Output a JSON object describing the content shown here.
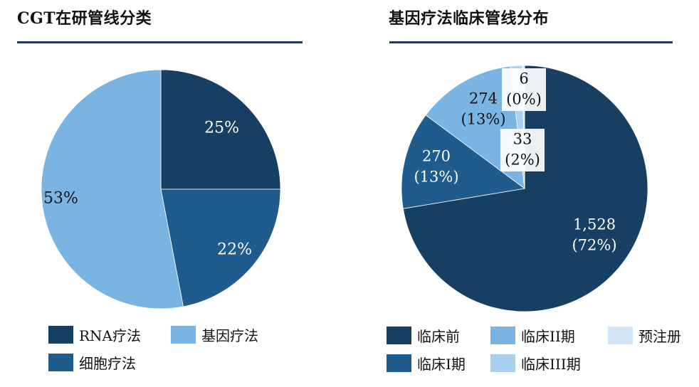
{
  "colors": {
    "dark_navy": "#173f63",
    "medium_blue": "#1f5b8c",
    "light_blue": "#7ab4e2",
    "pale_blue": "#a9d0f0",
    "very_pale_blue": "#d2e6f7",
    "rule": "#1f3a5a"
  },
  "chart_data": [
    {
      "type": "pie",
      "title": "CGT在研管线分类",
      "slices": [
        {
          "name": "RNA疗法",
          "value": 25,
          "label": "25%",
          "color": "#173f63"
        },
        {
          "name": "细胞疗法",
          "value": 22,
          "label": "22%",
          "color": "#1f5b8c"
        },
        {
          "name": "基因疗法",
          "value": 53,
          "label": "53%",
          "color": "#7ab4e2"
        }
      ],
      "legend_order": [
        "RNA疗法",
        "基因疗法",
        "细胞疗法"
      ],
      "legend": "bottom"
    },
    {
      "type": "pie",
      "title": "基因疗法临床管线分布",
      "slices": [
        {
          "name": "临床前",
          "value": 1528,
          "percent": "72%",
          "label_value": "1,528",
          "label_pct": "(72%)",
          "color": "#173f63"
        },
        {
          "name": "临床I期",
          "value": 270,
          "percent": "13%",
          "label_value": "270",
          "label_pct": "(13%)",
          "color": "#1f5b8c"
        },
        {
          "name": "临床II期",
          "value": 274,
          "percent": "13%",
          "label_value": "274",
          "label_pct": "(13%)",
          "color": "#7ab4e2"
        },
        {
          "name": "临床III期",
          "value": 33,
          "percent": "2%",
          "label_value": "33",
          "label_pct": "(2%)",
          "color": "#a9d0f0"
        },
        {
          "name": "预注册",
          "value": 6,
          "percent": "0%",
          "label_value": "6",
          "label_pct": "(0%)",
          "color": "#d2e6f7"
        }
      ],
      "legend_order": [
        "临床前",
        "临床II期",
        "预注册",
        "临床I期",
        "临床III期"
      ],
      "legend": "bottom"
    }
  ]
}
